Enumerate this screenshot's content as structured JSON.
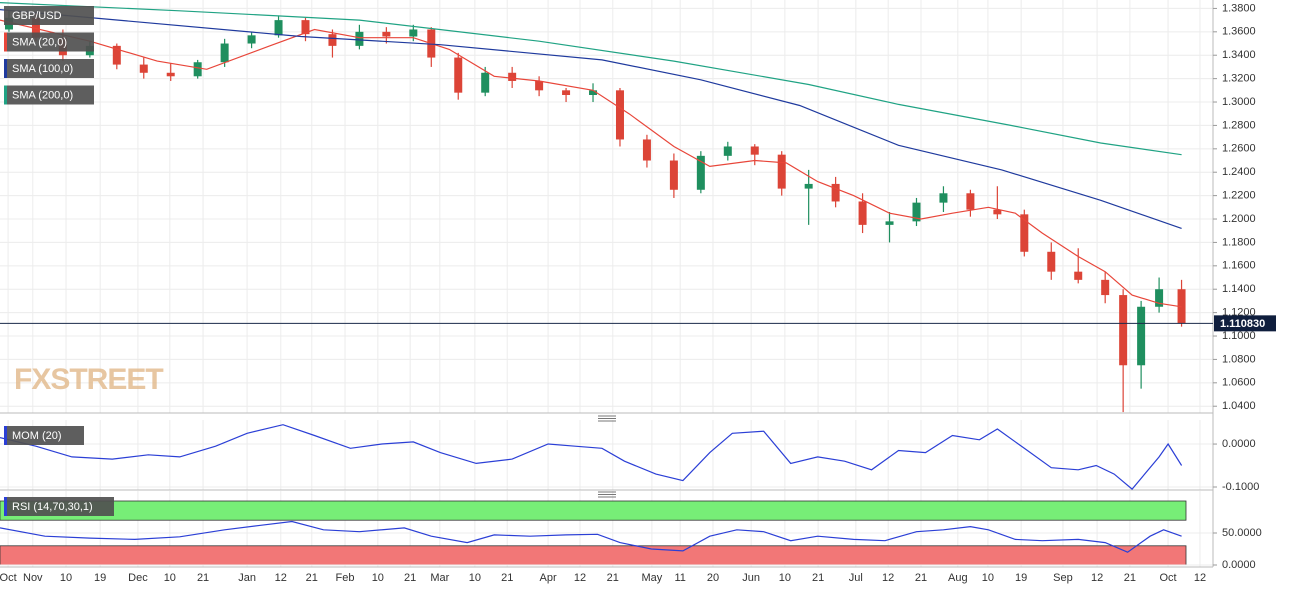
{
  "chart_data": [
    {
      "type": "candlestick",
      "title": "GBP/USD",
      "watermark": "FXSTREET",
      "up_color": "#1f8f5f",
      "down_color": "#dc4437",
      "ylim": [
        1.0342,
        1.3872
      ],
      "yticks": [
        {
          "value": 1.04,
          "label": "1.0400"
        },
        {
          "value": 1.06,
          "label": "1.0600"
        },
        {
          "value": 1.08,
          "label": "1.0800"
        },
        {
          "value": 1.1,
          "label": "1.1000"
        },
        {
          "value": 1.12,
          "label": "1.1200"
        },
        {
          "value": 1.14,
          "label": "1.1400"
        },
        {
          "value": 1.16,
          "label": "1.1600"
        },
        {
          "value": 1.18,
          "label": "1.1800"
        },
        {
          "value": 1.2,
          "label": "1.2000"
        },
        {
          "value": 1.22,
          "label": "1.2200"
        },
        {
          "value": 1.24,
          "label": "1.2400"
        },
        {
          "value": 1.26,
          "label": "1.2600"
        },
        {
          "value": 1.28,
          "label": "1.2800"
        },
        {
          "value": 1.3,
          "label": "1.3000"
        },
        {
          "value": 1.32,
          "label": "1.3200"
        },
        {
          "value": 1.34,
          "label": "1.3400"
        },
        {
          "value": 1.36,
          "label": "1.3600"
        },
        {
          "value": 1.38,
          "label": "1.3800"
        }
      ],
      "grid": true,
      "last_price": {
        "value": 1.11083,
        "label": "1.110830"
      },
      "candles": {
        "x": [
          2,
          8,
          14,
          20,
          26,
          32,
          38,
          44,
          50,
          56,
          62,
          68,
          74,
          80,
          86,
          92,
          96,
          102,
          108,
          114,
          120,
          126,
          132,
          138,
          144,
          150,
          156,
          162,
          168,
          174,
          180,
          186,
          192,
          198,
          204,
          210,
          216,
          222,
          228,
          234,
          240,
          246,
          250,
          254,
          258,
          263
        ],
        "open": [
          1.362,
          1.372,
          1.355,
          1.34,
          1.348,
          1.332,
          1.325,
          1.322,
          1.334,
          1.35,
          1.357,
          1.37,
          1.358,
          1.348,
          1.36,
          1.356,
          1.362,
          1.338,
          1.308,
          1.325,
          1.318,
          1.31,
          1.306,
          1.31,
          1.268,
          1.25,
          1.225,
          1.254,
          1.262,
          1.255,
          1.226,
          1.23,
          1.215,
          1.195,
          1.198,
          1.214,
          1.222,
          1.208,
          1.204,
          1.172,
          1.155,
          1.148,
          1.135,
          1.075,
          1.125,
          1.14
        ],
        "high": [
          1.378,
          1.376,
          1.362,
          1.352,
          1.35,
          1.338,
          1.333,
          1.336,
          1.354,
          1.36,
          1.374,
          1.372,
          1.362,
          1.366,
          1.364,
          1.366,
          1.364,
          1.342,
          1.33,
          1.33,
          1.322,
          1.312,
          1.316,
          1.312,
          1.272,
          1.256,
          1.258,
          1.266,
          1.264,
          1.258,
          1.242,
          1.236,
          1.222,
          1.206,
          1.218,
          1.228,
          1.225,
          1.228,
          1.208,
          1.18,
          1.175,
          1.155,
          1.14,
          1.13,
          1.15,
          1.148
        ],
        "low": [
          1.36,
          1.352,
          1.335,
          1.338,
          1.328,
          1.32,
          1.318,
          1.32,
          1.33,
          1.346,
          1.355,
          1.352,
          1.338,
          1.345,
          1.35,
          1.352,
          1.33,
          1.302,
          1.305,
          1.312,
          1.305,
          1.3,
          1.3,
          1.262,
          1.244,
          1.218,
          1.222,
          1.25,
          1.246,
          1.22,
          1.195,
          1.21,
          1.188,
          1.18,
          1.194,
          1.206,
          1.202,
          1.2,
          1.168,
          1.148,
          1.145,
          1.128,
          1.035,
          1.055,
          1.12,
          1.108
        ],
        "close": [
          1.372,
          1.355,
          1.34,
          1.348,
          1.332,
          1.325,
          1.322,
          1.334,
          1.35,
          1.357,
          1.37,
          1.358,
          1.348,
          1.36,
          1.356,
          1.362,
          1.338,
          1.308,
          1.325,
          1.318,
          1.31,
          1.306,
          1.31,
          1.268,
          1.25,
          1.225,
          1.254,
          1.262,
          1.255,
          1.226,
          1.23,
          1.215,
          1.195,
          1.198,
          1.214,
          1.222,
          1.208,
          1.204,
          1.172,
          1.155,
          1.148,
          1.135,
          1.075,
          1.125,
          1.14,
          1.111
        ]
      },
      "series": [
        {
          "name": "SMA (20,0)",
          "color": "#e8463a",
          "x": [
            0,
            20,
            35,
            46,
            60,
            70,
            80,
            92,
            100,
            110,
            120,
            132,
            140,
            150,
            158,
            168,
            175,
            182,
            190,
            198,
            205,
            212,
            220,
            226,
            232,
            240,
            246,
            252,
            258,
            263
          ],
          "values": [
            1.37,
            1.352,
            1.335,
            1.328,
            1.348,
            1.362,
            1.355,
            1.355,
            1.345,
            1.322,
            1.318,
            1.31,
            1.29,
            1.262,
            1.245,
            1.25,
            1.248,
            1.232,
            1.22,
            1.205,
            1.2,
            1.205,
            1.21,
            1.205,
            1.188,
            1.168,
            1.155,
            1.135,
            1.128,
            1.125
          ]
        },
        {
          "name": "SMA (100,0)",
          "color": "#1f3a9e",
          "x": [
            0,
            67,
            98,
            134,
            156,
            178,
            200,
            223,
            245,
            263
          ],
          "values": [
            1.379,
            1.356,
            1.349,
            1.336,
            1.319,
            1.297,
            1.263,
            1.242,
            1.216,
            1.192
          ]
        },
        {
          "name": "SMA (200,0)",
          "color": "#20a384",
          "x": [
            0,
            40,
            80,
            120,
            150,
            180,
            200,
            225,
            245,
            263
          ],
          "values": [
            1.385,
            1.378,
            1.37,
            1.352,
            1.335,
            1.315,
            1.298,
            1.28,
            1.265,
            1.255
          ]
        }
      ]
    },
    {
      "type": "line",
      "ylim": [
        -0.107,
        0.056
      ],
      "grid": true,
      "yticks": [
        {
          "value": 0,
          "label": "0.0000"
        },
        {
          "value": -0.1,
          "label": "-0.1000"
        }
      ],
      "series": [
        {
          "name": "MOM (20)",
          "color": "#2b3fd6",
          "x": [
            0,
            8,
            16,
            25,
            33,
            40,
            48,
            55,
            63,
            70,
            78,
            85,
            92,
            98,
            106,
            114,
            122,
            128,
            134,
            139,
            146,
            152,
            158,
            163,
            170,
            176,
            182,
            188,
            194,
            200,
            206,
            212,
            218,
            222,
            228,
            234,
            240,
            244,
            248,
            252,
            258,
            260,
            263
          ],
          "values": [
            0.015,
            -0.005,
            -0.03,
            -0.035,
            -0.025,
            -0.03,
            -0.005,
            0.025,
            0.045,
            0.02,
            -0.01,
            0.0,
            0.005,
            -0.02,
            -0.045,
            -0.035,
            0.0,
            -0.005,
            -0.01,
            -0.04,
            -0.07,
            -0.085,
            -0.02,
            0.025,
            0.03,
            -0.045,
            -0.03,
            -0.04,
            -0.06,
            -0.015,
            -0.02,
            0.02,
            0.01,
            0.035,
            -0.01,
            -0.055,
            -0.06,
            -0.05,
            -0.07,
            -0.105,
            -0.03,
            0.0,
            -0.05
          ]
        }
      ]
    },
    {
      "type": "line",
      "ylim": [
        0,
        100
      ],
      "grid": true,
      "yticks": [
        {
          "value": 0,
          "label": "0.0000"
        },
        {
          "value": 50,
          "label": "50.0000"
        }
      ],
      "upper_level": 70,
      "lower_level": 30,
      "upper_color": "#77ee77",
      "lower_color": "#f27777",
      "xlim": [
        0,
        270
      ],
      "xticks": [
        {
          "value": 1.8,
          "label": "Oct"
        },
        {
          "value": 7.3,
          "label": "Nov"
        },
        {
          "value": 14.7,
          "label": "10"
        },
        {
          "value": 22.3,
          "label": "19"
        },
        {
          "value": 30.7,
          "label": "Dec"
        },
        {
          "value": 37.8,
          "label": "10"
        },
        {
          "value": 45.2,
          "label": "21"
        },
        {
          "value": 55,
          "label": "Jan"
        },
        {
          "value": 62.5,
          "label": "12"
        },
        {
          "value": 69.4,
          "label": "21"
        },
        {
          "value": 76.8,
          "label": "Feb"
        },
        {
          "value": 84.1,
          "label": "10"
        },
        {
          "value": 91.3,
          "label": "21"
        },
        {
          "value": 97.9,
          "label": "Mar"
        },
        {
          "value": 105.7,
          "label": "10"
        },
        {
          "value": 112.9,
          "label": "21"
        },
        {
          "value": 122,
          "label": "Apr"
        },
        {
          "value": 129.1,
          "label": "12"
        },
        {
          "value": 136.4,
          "label": "21"
        },
        {
          "value": 145.1,
          "label": "May"
        },
        {
          "value": 151.4,
          "label": "11"
        },
        {
          "value": 158.7,
          "label": "20"
        },
        {
          "value": 167.2,
          "label": "Jun"
        },
        {
          "value": 174.7,
          "label": "10"
        },
        {
          "value": 182.1,
          "label": "21"
        },
        {
          "value": 190.5,
          "label": "Jul"
        },
        {
          "value": 197.7,
          "label": "12"
        },
        {
          "value": 205,
          "label": "21"
        },
        {
          "value": 213.2,
          "label": "Aug"
        },
        {
          "value": 219.9,
          "label": "10"
        },
        {
          "value": 227.3,
          "label": "19"
        },
        {
          "value": 236.6,
          "label": "Sep"
        },
        {
          "value": 244.2,
          "label": "12"
        },
        {
          "value": 251.5,
          "label": "21"
        },
        {
          "value": 260,
          "label": "Oct"
        },
        {
          "value": 267.1,
          "label": "12"
        }
      ],
      "series": [
        {
          "name": "RSI (14,70,30,1)",
          "color": "#2b3fd6",
          "x": [
            0,
            10,
            20,
            30,
            40,
            50,
            58,
            65,
            72,
            80,
            90,
            96,
            104,
            110,
            118,
            126,
            133,
            138,
            145,
            152,
            158,
            164,
            170,
            176,
            182,
            190,
            197,
            204,
            210,
            216,
            220,
            226,
            232,
            240,
            246,
            251,
            256,
            259,
            263
          ],
          "values": [
            58,
            45,
            42,
            40,
            44,
            55,
            62,
            68,
            55,
            52,
            58,
            45,
            35,
            47,
            45,
            47,
            48,
            35,
            25,
            22,
            45,
            55,
            52,
            38,
            45,
            40,
            38,
            52,
            55,
            60,
            55,
            40,
            38,
            40,
            35,
            20,
            45,
            55,
            45
          ]
        }
      ]
    }
  ]
}
